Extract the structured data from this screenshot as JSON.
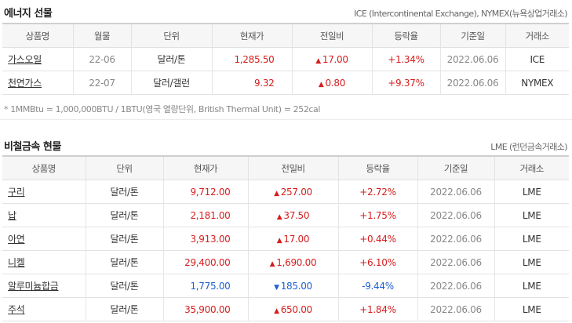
{
  "energy": {
    "title": "에너지 선물",
    "source": "ICE (Intercontinental Exchange), NYMEX(뉴욕상업거래소)",
    "headers": [
      "상품명",
      "월물",
      "단위",
      "현재가",
      "전일비",
      "등락율",
      "기준일",
      "거래소"
    ],
    "rows": [
      {
        "name": "가스오일",
        "month": "22-06",
        "unit": "달러/톤",
        "price": "1,285.50",
        "dir": "up",
        "arrow": "▲",
        "change": "17.00",
        "rate": "+1.34%",
        "date": "2022.06.06",
        "exchange": "ICE"
      },
      {
        "name": "천연가스",
        "month": "22-07",
        "unit": "달러/갤런",
        "price": "9.32",
        "dir": "up",
        "arrow": "▲",
        "change": "0.80",
        "rate": "+9.37%",
        "date": "2022.06.06",
        "exchange": "NYMEX"
      }
    ],
    "note": "* 1MMBtu = 1,000,000BTU / 1BTU(영국 열량단위, British Thermal Unit) = 252cal"
  },
  "metals": {
    "title": "비철금속 현물",
    "source": "LME (런던금속거래소)",
    "headers": [
      "상품명",
      "단위",
      "현재가",
      "전일비",
      "등락율",
      "기준일",
      "거래소"
    ],
    "rows": [
      {
        "name": "구리",
        "unit": "달러/톤",
        "price": "9,712.00",
        "dir": "up",
        "arrow": "▲",
        "change": "257.00",
        "rate": "+2.72%",
        "date": "2022.06.06",
        "exchange": "LME"
      },
      {
        "name": "납",
        "unit": "달러/톤",
        "price": "2,181.00",
        "dir": "up",
        "arrow": "▲",
        "change": "37.50",
        "rate": "+1.75%",
        "date": "2022.06.06",
        "exchange": "LME"
      },
      {
        "name": "아연",
        "unit": "달러/톤",
        "price": "3,913.00",
        "dir": "up",
        "arrow": "▲",
        "change": "17.00",
        "rate": "+0.44%",
        "date": "2022.06.06",
        "exchange": "LME"
      },
      {
        "name": "니켈",
        "unit": "달러/톤",
        "price": "29,400.00",
        "dir": "up",
        "arrow": "▲",
        "change": "1,690.00",
        "rate": "+6.10%",
        "date": "2022.06.06",
        "exchange": "LME"
      },
      {
        "name": "알루미늄합금",
        "unit": "달러/톤",
        "price": "1,775.00",
        "dir": "down",
        "arrow": "▼",
        "change": "185.00",
        "rate": "-9.44%",
        "date": "2022.06.06",
        "exchange": "LME"
      },
      {
        "name": "주석",
        "unit": "달러/톤",
        "price": "35,900.00",
        "dir": "up",
        "arrow": "▲",
        "change": "650.00",
        "rate": "+1.84%",
        "date": "2022.06.06",
        "exchange": "LME"
      }
    ]
  },
  "colors": {
    "up": "#d61e1e",
    "down": "#1e5fcf"
  }
}
